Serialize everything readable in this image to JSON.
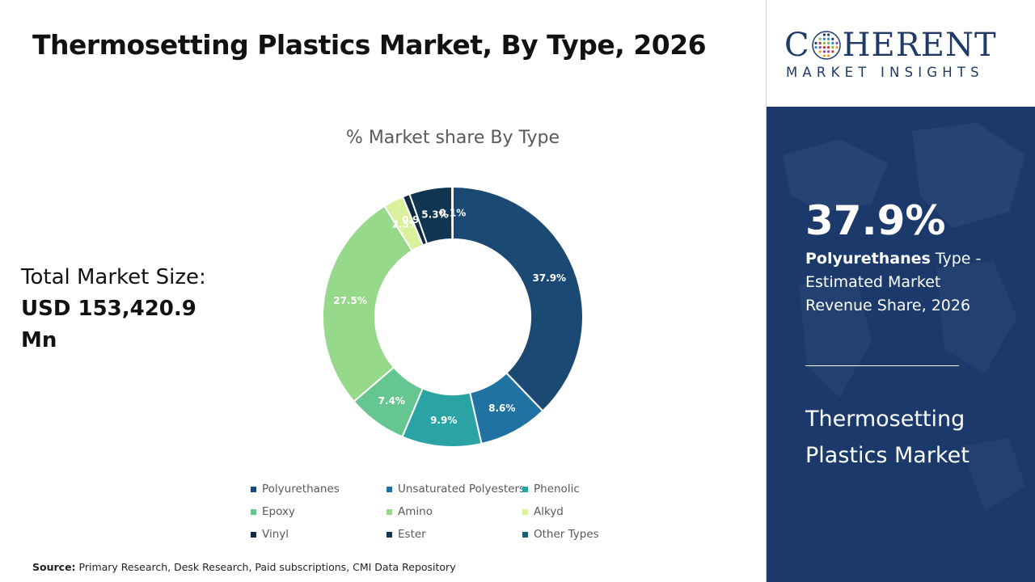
{
  "header": {
    "title": "Thermosetting Plastics Market, By Type, 2026"
  },
  "market_size": {
    "label": "Total Market Size:",
    "value": "USD 153,420.9 Mn"
  },
  "chart_data": {
    "type": "pie",
    "donut": true,
    "title": "% Market share By Type",
    "categories": [
      "Polyurethanes",
      "Unsaturated Polyesters",
      "Phenolic",
      "Epoxy",
      "Amino",
      "Alkyd",
      "Vinyl",
      "Ester",
      "Other Types"
    ],
    "values": [
      37.9,
      8.6,
      9.9,
      7.4,
      27.5,
      2.5,
      0.9,
      5.3,
      0.1
    ],
    "data_labels": [
      "37.9%",
      "8.6%",
      "9.9%",
      "7.4%",
      "27.5%",
      "2.5%",
      "0.9%",
      "5.3%",
      "0.1%"
    ],
    "colors": [
      "#1a4a73",
      "#1f72a2",
      "#2aa3a4",
      "#66c691",
      "#97d98b",
      "#d9f09d",
      "#0e2a45",
      "#0f3550",
      "#1f5b73"
    ],
    "label_colors": [
      "#ffffff",
      "#ffffff",
      "#ffffff",
      "#ffffff",
      "#ffffff",
      "#ffffff",
      "#ffffff",
      "#ffffff",
      "#ffffff"
    ],
    "legend_position": "bottom"
  },
  "source": {
    "label": "Source:",
    "text": "Primary Research, Desk Research, Paid subscriptions, CMI Data Repository"
  },
  "brand": {
    "word_start": "C",
    "word_end": "HERENT",
    "sub": "MARKET INSIGHTS",
    "color": "#1f3a66"
  },
  "highlight": {
    "percent": "37.9%",
    "segment": "Polyurethanes",
    "description": "Type - Estimated Market Revenue Share, 2026",
    "market_name": "Thermosetting Plastics Market",
    "panel_color": "#1b3a6b"
  }
}
